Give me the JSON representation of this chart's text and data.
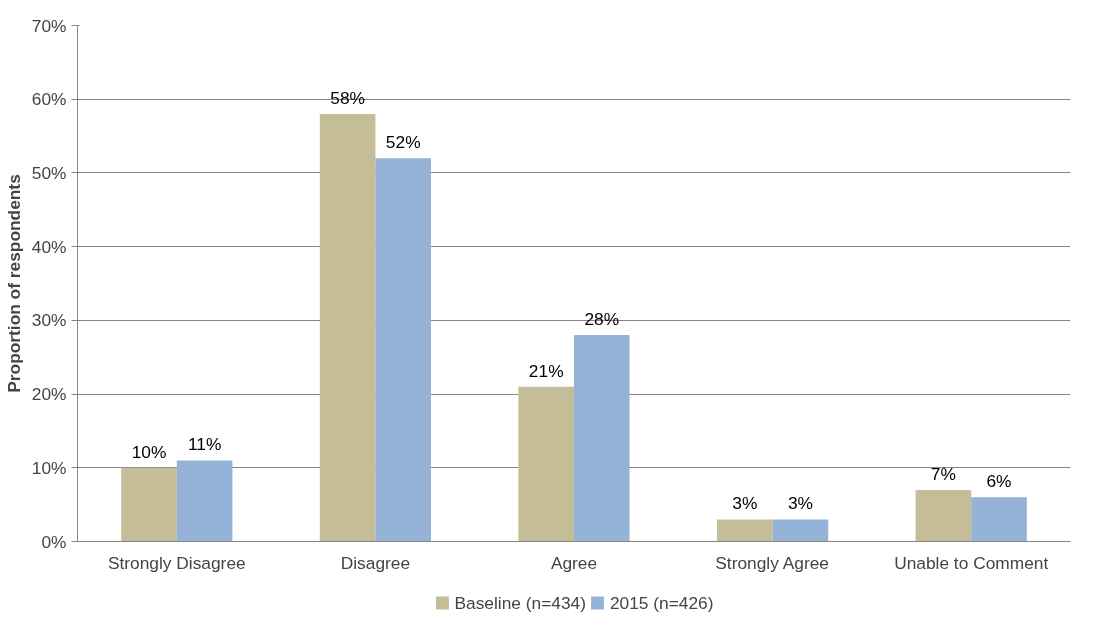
{
  "chart_data": {
    "type": "bar",
    "ylabel": "Proportion of respondents",
    "categories": [
      "Strongly Disagree",
      "Disagree",
      "Agree",
      "Strongly Agree",
      "Unable to Comment"
    ],
    "series": [
      {
        "name": "Baseline (n=434)",
        "color": "#c4bd97",
        "values": [
          10,
          58,
          21,
          3,
          7
        ],
        "value_labels": [
          "10%",
          "58%",
          "21%",
          "3%",
          "7%"
        ]
      },
      {
        "name": "2015 (n=426)",
        "color": "#95b3d7",
        "values": [
          11,
          52,
          28,
          3,
          6
        ],
        "value_labels": [
          "11%",
          "52%",
          "28%",
          "3%",
          "6%"
        ]
      }
    ],
    "ylim": [
      0,
      70
    ],
    "yticks": [
      {
        "value": 0,
        "label": "0%"
      },
      {
        "value": 10,
        "label": "10%"
      },
      {
        "value": 20,
        "label": "20%"
      },
      {
        "value": 30,
        "label": "30%"
      },
      {
        "value": 40,
        "label": "40%"
      },
      {
        "value": 50,
        "label": "50%"
      },
      {
        "value": 60,
        "label": "60%"
      },
      {
        "value": 70,
        "label": "70%"
      }
    ],
    "grid": "y",
    "legend": "bottom"
  }
}
